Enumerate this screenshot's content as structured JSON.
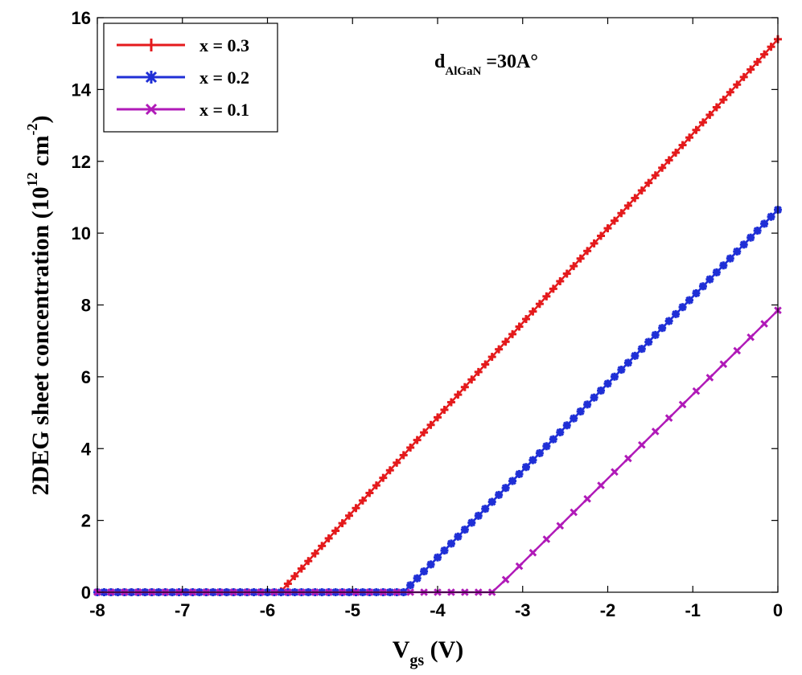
{
  "chart_data": {
    "type": "line",
    "xlabel": {
      "main": "V",
      "sub": "gs",
      "unit": " (V)"
    },
    "ylabel": {
      "main": "2DEG sheet concentration  (10",
      "exp1": "12",
      "mid": " cm",
      "exp2": "-2",
      "end": ")"
    },
    "annotation": {
      "main": "d",
      "sub": "AlGaN",
      "rest": " =30A°"
    },
    "xlim": [
      -8,
      0
    ],
    "ylim": [
      0,
      16
    ],
    "xticks": [
      -8,
      -7,
      -6,
      -5,
      -4,
      -3,
      -2,
      -1,
      0
    ],
    "yticks": [
      0,
      2,
      4,
      6,
      8,
      10,
      12,
      14,
      16
    ],
    "xtick_labels": [
      "-8",
      "-7",
      "-6",
      "-5",
      "-4",
      "-3",
      "-2",
      "-1",
      "0"
    ],
    "ytick_labels": [
      "0",
      "2",
      "4",
      "6",
      "8",
      "10",
      "12",
      "14",
      "16"
    ],
    "grid": false,
    "legend_position": "top-left",
    "series": [
      {
        "name": "x = 0.3",
        "color": "#e41a1c",
        "marker": "plus",
        "threshold": -5.85,
        "end_value": 15.4,
        "n_points": 101
      },
      {
        "name": "x = 0.2",
        "color": "#1f2fd6",
        "marker": "star",
        "threshold": -4.4,
        "end_value": 10.65,
        "n_points": 101
      },
      {
        "name": "x = 0.1",
        "color": "#b01ab8",
        "marker": "x",
        "threshold": -3.35,
        "end_value": 7.85,
        "n_points": 51
      }
    ]
  }
}
